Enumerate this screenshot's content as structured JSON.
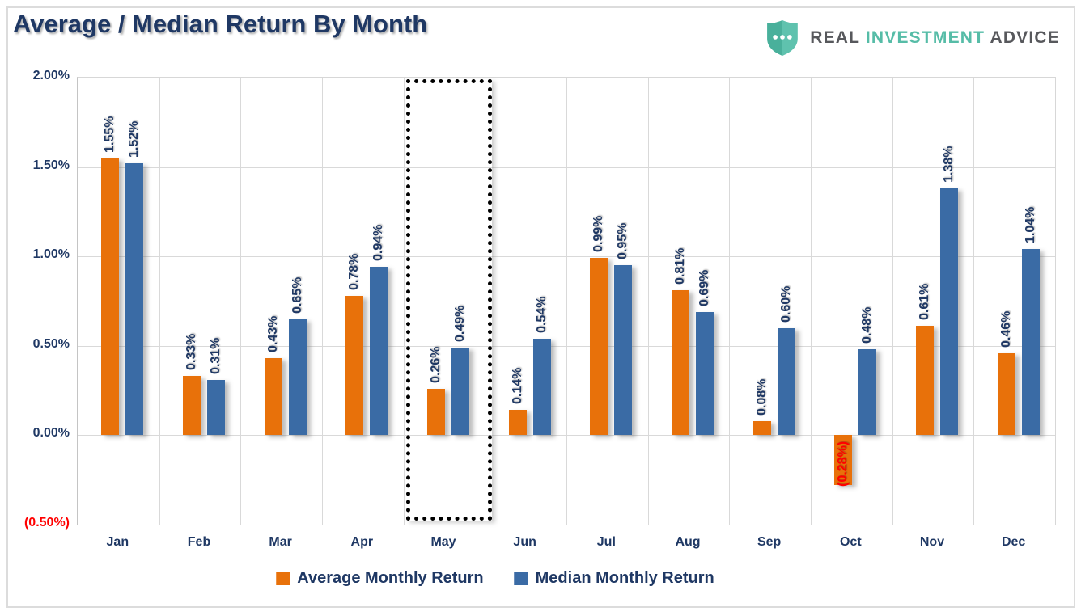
{
  "title": "Average / Median Return By Month",
  "logo": {
    "real": "REAL",
    "investment": "INVESTMENT",
    "advice": "ADVICE",
    "shield_color": "#5FC2AE",
    "shield_color_dark": "#49B09B",
    "text_gray": "#57585C",
    "text_teal": "#56BCA7"
  },
  "colors": {
    "navy_text": "#1F3864",
    "negative_red": "#FF0000",
    "gridline": "#D9D9D9",
    "average_orange": "#E8710A",
    "median_blue": "#3A6BA5"
  },
  "chart_data": {
    "type": "bar",
    "title": "Average / Median Return By Month",
    "categories": [
      "Jan",
      "Feb",
      "Mar",
      "Apr",
      "May",
      "Jun",
      "Jul",
      "Aug",
      "Sep",
      "Oct",
      "Nov",
      "Dec"
    ],
    "series": [
      {
        "name": "Average Monthly Return",
        "color": "#E8710A",
        "values": [
          1.55,
          0.33,
          0.43,
          0.78,
          0.26,
          0.14,
          0.99,
          0.81,
          0.08,
          -0.28,
          0.61,
          0.46
        ],
        "labels": [
          "1.55%",
          "0.33%",
          "0.43%",
          "0.78%",
          "0.26%",
          "0.14%",
          "0.99%",
          "0.81%",
          "0.08%",
          "(0.28%)",
          "0.61%",
          "0.46%"
        ]
      },
      {
        "name": "Median Monthly Return",
        "color": "#3A6BA5",
        "values": [
          1.52,
          0.31,
          0.65,
          0.94,
          0.49,
          0.54,
          0.95,
          0.69,
          0.6,
          0.48,
          1.38,
          1.04
        ],
        "labels": [
          "1.52%",
          "0.31%",
          "0.65%",
          "0.94%",
          "0.49%",
          "0.54%",
          "0.95%",
          "0.69%",
          "0.60%",
          "0.48%",
          "1.38%",
          "1.04%"
        ]
      }
    ],
    "ylim": [
      -0.5,
      2.0
    ],
    "yticks": [
      {
        "label": "2.00%",
        "value": 2.0,
        "negative": false
      },
      {
        "label": "1.50%",
        "value": 1.5,
        "negative": false
      },
      {
        "label": "1.00%",
        "value": 1.0,
        "negative": false
      },
      {
        "label": "0.50%",
        "value": 0.5,
        "negative": false
      },
      {
        "label": "0.00%",
        "value": 0.0,
        "negative": false
      },
      {
        "label": "(0.50%)",
        "value": -0.5,
        "negative": true
      }
    ],
    "grid": true,
    "legend_position": "bottom",
    "highlight_category": "May",
    "negative_label_color": "#FF0000",
    "xlabel": "",
    "ylabel": ""
  }
}
